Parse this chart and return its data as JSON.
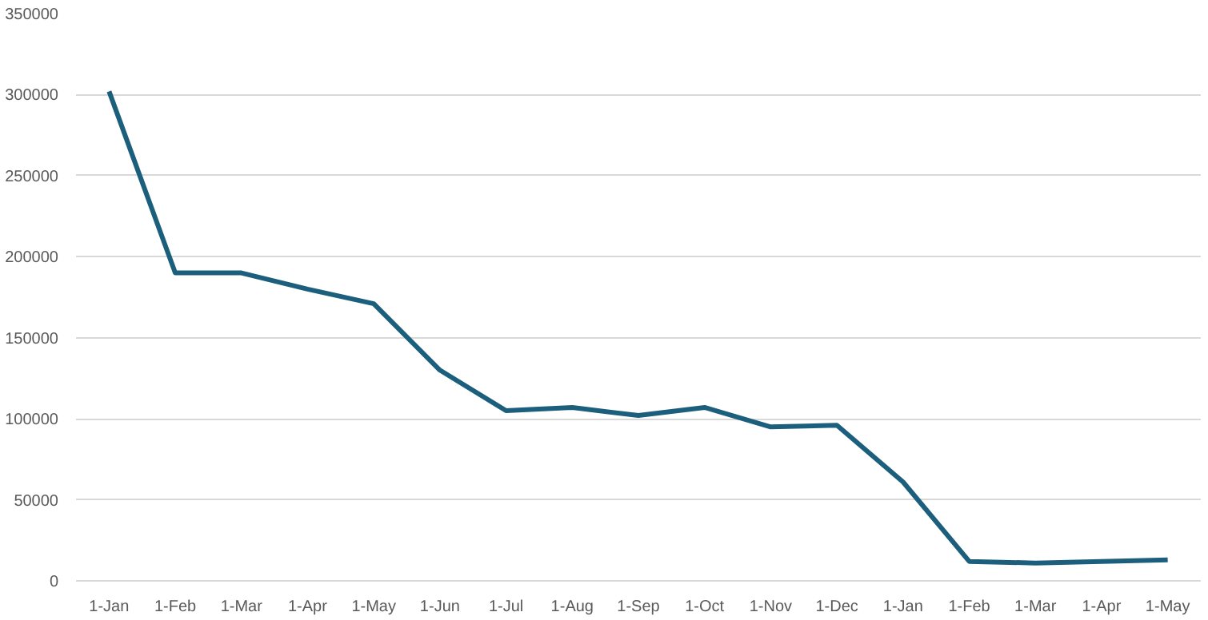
{
  "chart_data": {
    "type": "line",
    "categories": [
      "1-Jan",
      "1-Feb",
      "1-Mar",
      "1-Apr",
      "1-May",
      "1-Jun",
      "1-Jul",
      "1-Aug",
      "1-Sep",
      "1-Oct",
      "1-Nov",
      "1-Dec",
      "1-Jan",
      "1-Feb",
      "1-Mar",
      "1-Apr",
      "1-May"
    ],
    "series": [
      {
        "color": "#1c5f7d",
        "values": [
          302000,
          190000,
          190000,
          180000,
          171000,
          130000,
          105000,
          107000,
          102000,
          107000,
          95000,
          96000,
          61000,
          12000,
          11000,
          12000,
          13000
        ]
      }
    ],
    "ylim": [
      0,
      350000
    ],
    "yticks": [
      0,
      50000,
      100000,
      150000,
      200000,
      250000,
      300000,
      350000
    ],
    "grid": "y",
    "marker": "none",
    "line_style": "solid"
  }
}
